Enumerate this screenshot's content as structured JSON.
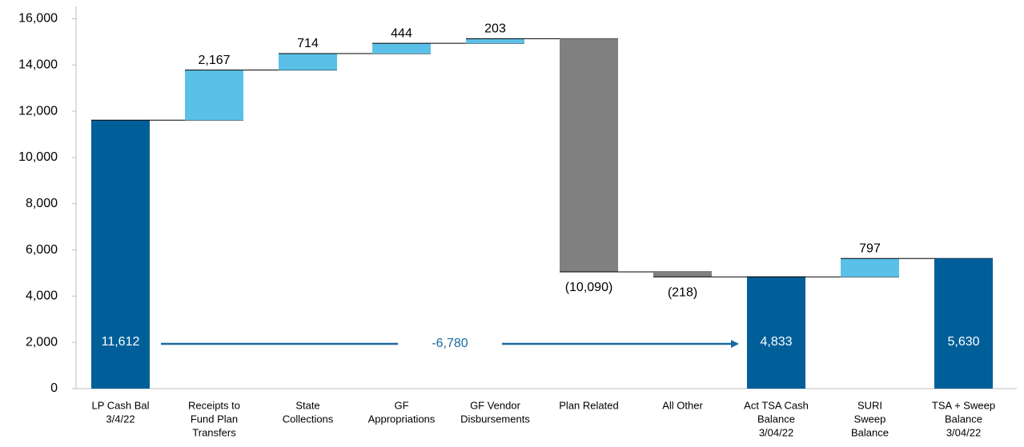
{
  "chart_data": {
    "type": "waterfall",
    "categories": [
      [
        "LP Cash Bal",
        "3/4/22"
      ],
      [
        "Receipts to",
        "Fund Plan",
        "Transfers"
      ],
      [
        "State",
        "Collections"
      ],
      [
        "GF",
        "Appropriations"
      ],
      [
        "GF Vendor",
        "Disbursements"
      ],
      [
        "Plan Related"
      ],
      [
        "All Other"
      ],
      [
        "Act TSA Cash",
        "Balance",
        "3/04/22"
      ],
      [
        "SURI",
        "Sweep",
        "Balance"
      ],
      [
        "TSA + Sweep",
        "Balance",
        "3/04/22"
      ]
    ],
    "values": [
      11612,
      2167,
      714,
      444,
      203,
      -10090,
      -218,
      4833,
      797,
      5630
    ],
    "value_labels": [
      "11,612",
      "2,167",
      "714",
      "444",
      "203",
      "(10,090)",
      "(218)",
      "4,833",
      "797",
      "5,630"
    ],
    "kinds": [
      "total",
      "increase",
      "increase",
      "increase",
      "increase",
      "decrease",
      "decrease",
      "total",
      "increase",
      "total"
    ],
    "colors": {
      "total": "#005f99",
      "increase": "#5bc0e8",
      "decrease": "#808080"
    },
    "annotation": "-6,780",
    "ylim": [
      0,
      16500
    ],
    "yticks": [
      0,
      {
        "value": 2000,
        "label": "2,000"
      },
      {
        "value": 4000,
        "label": "4,000"
      },
      {
        "value": 6000,
        "label": "6,000"
      },
      {
        "value": 8000,
        "label": "8,000"
      },
      {
        "value": 10000,
        "label": "10,000"
      },
      {
        "value": 12000,
        "label": "12,000"
      },
      {
        "value": 14000,
        "label": "14,000"
      },
      {
        "value": 16000,
        "label": "16,000"
      }
    ],
    "grid": false
  }
}
